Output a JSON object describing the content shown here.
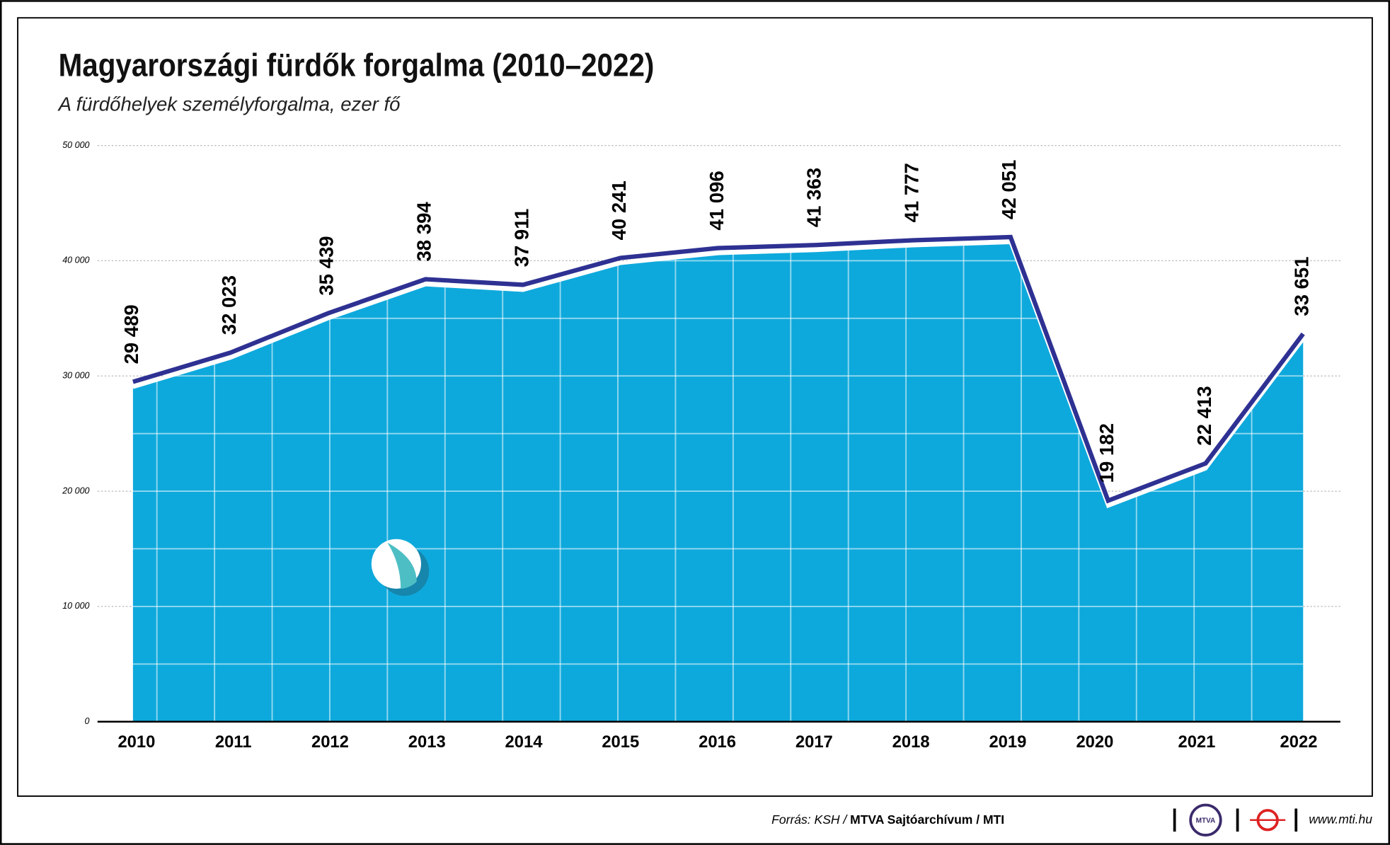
{
  "chart_data": {
    "type": "line",
    "title": "Magyarországi fürdők forgalma (2010–2022)",
    "subtitle": "A fürdőhelyek személyforgalma, ezer fő",
    "categories": [
      "2010",
      "2011",
      "2012",
      "2013",
      "2014",
      "2015",
      "2016",
      "2017",
      "2018",
      "2019",
      "2020",
      "2021",
      "2022"
    ],
    "values": [
      29489,
      32023,
      35439,
      38394,
      37911,
      40241,
      41096,
      41363,
      41777,
      42051,
      19182,
      22413,
      33651
    ],
    "value_labels": [
      "29 489",
      "32 023",
      "35 439",
      "38 394",
      "37 911",
      "40 241",
      "41 096",
      "41 363",
      "41 777",
      "42 051",
      "19 182",
      "22 413",
      "33 651"
    ],
    "color": "#2e3192",
    "area_color": "#0ea9dc",
    "ylim": [
      0,
      50000
    ],
    "yticks": [
      0,
      {
        "value": 10000,
        "label": "10 000"
      },
      {
        "value": 20000,
        "label": "20 000"
      },
      {
        "value": 30000,
        "label": "30 000"
      },
      {
        "value": 40000,
        "label": "40 000"
      },
      {
        "value": 50000,
        "label": "50 000"
      }
    ],
    "grid": true
  },
  "footer": {
    "source_prefix": "Forrás: KSH / ",
    "source_bold": "MTVA Sajtóarchívum / MTI",
    "logo": "MTVA",
    "url": "www.mti.hu"
  }
}
